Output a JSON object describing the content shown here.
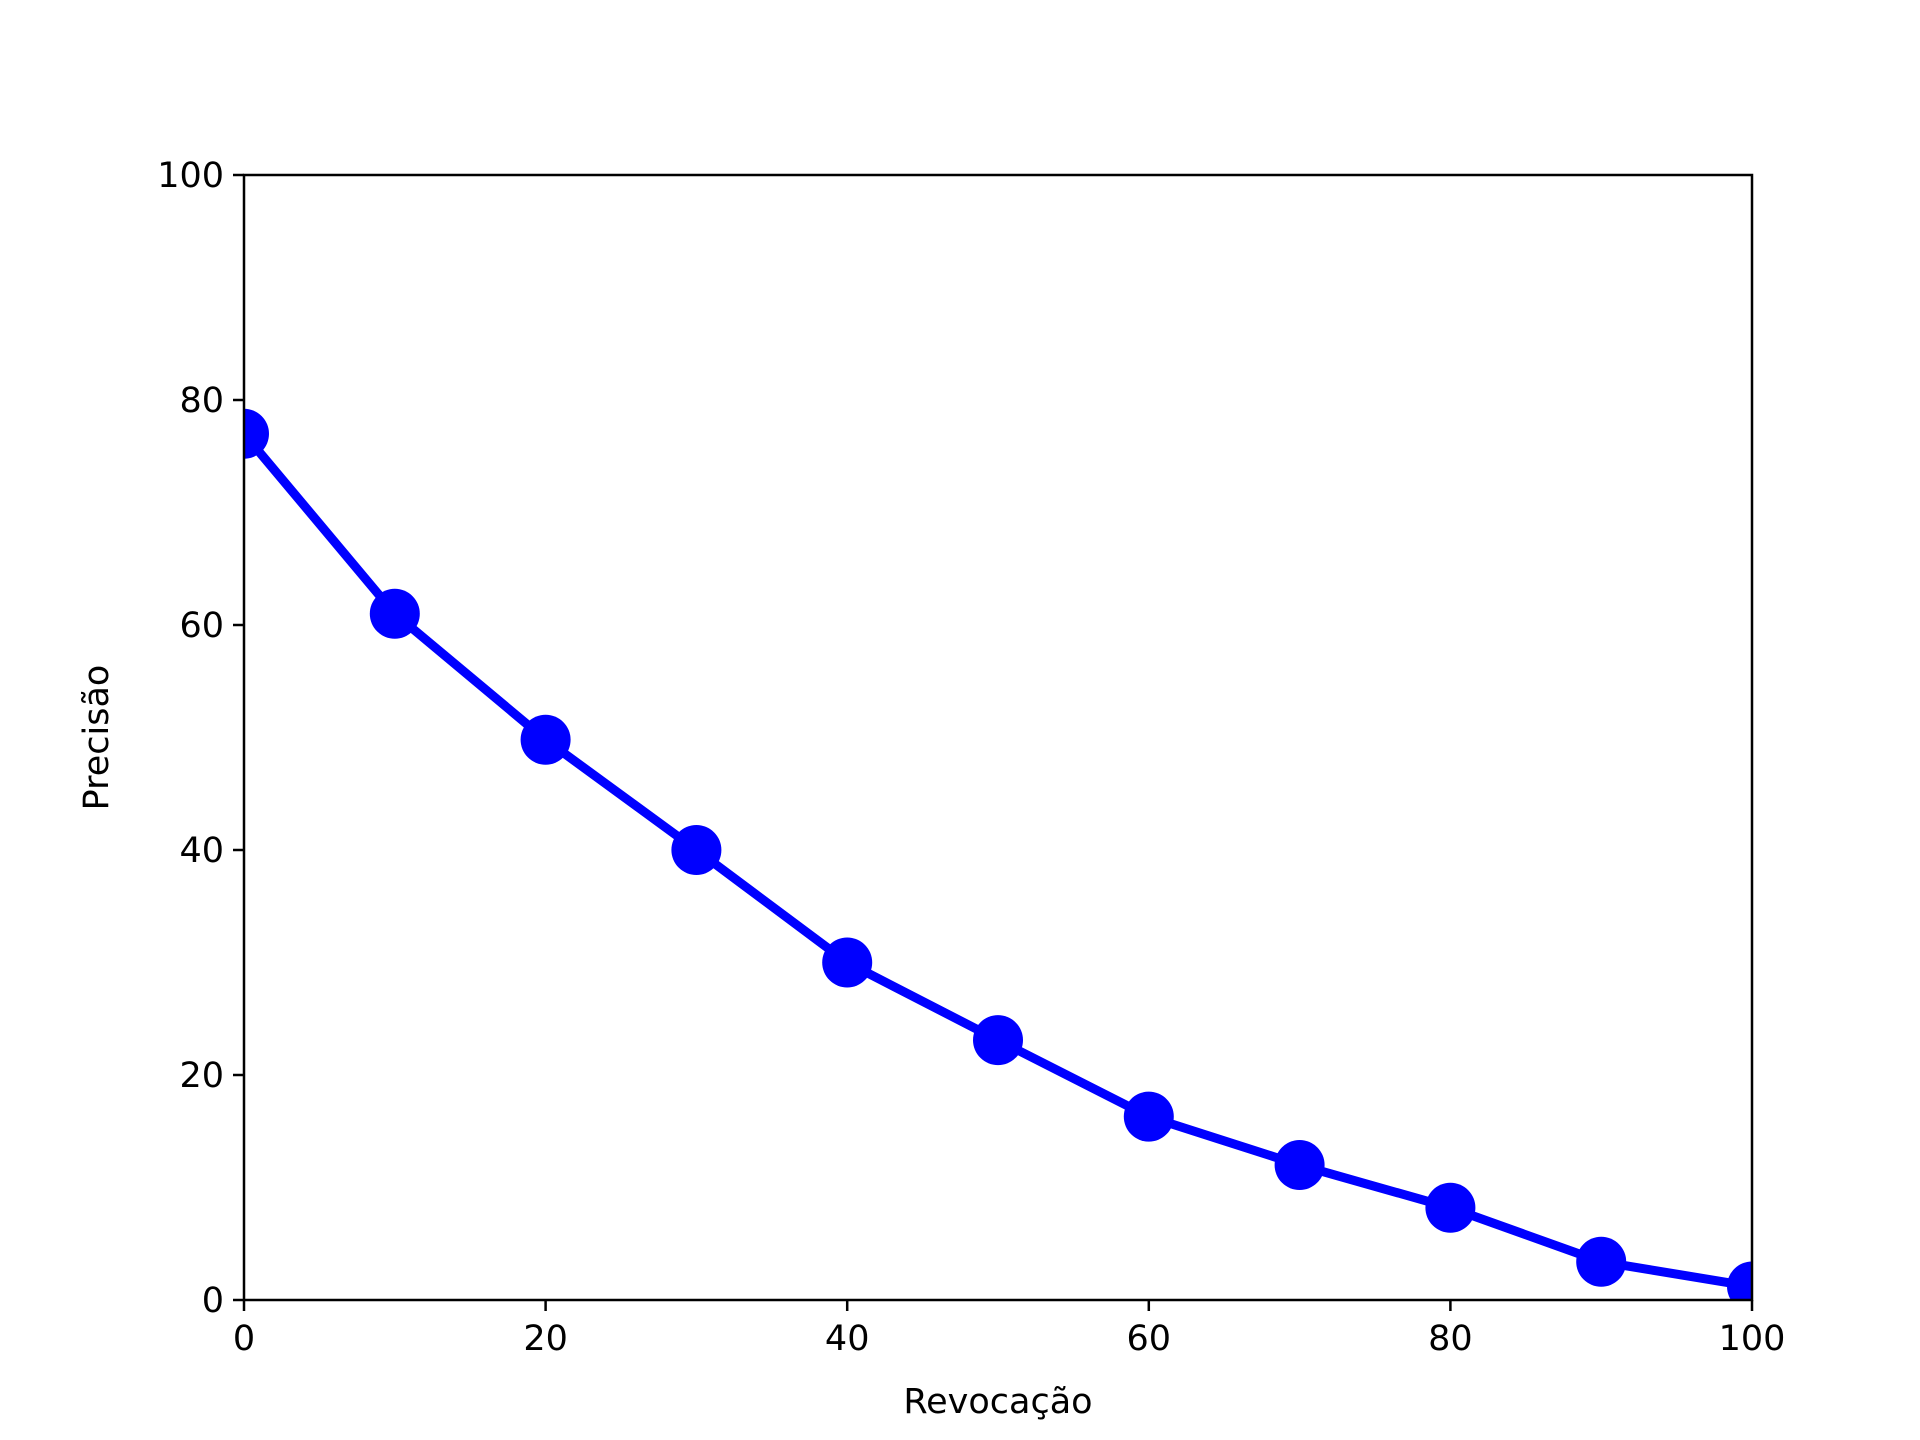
{
  "chart_data": {
    "type": "line",
    "title": "",
    "xlabel": "Revocação",
    "ylabel": "Precisão",
    "xlim": [
      0,
      100
    ],
    "ylim": [
      0,
      100
    ],
    "x_ticks": [
      0,
      20,
      40,
      60,
      80,
      100
    ],
    "y_ticks": [
      0,
      20,
      40,
      60,
      80,
      100
    ],
    "grid": false,
    "legend": "none",
    "series": [
      {
        "color": "#0000ff",
        "marker": "circle",
        "points": [
          {
            "x": 0,
            "y": 77.0
          },
          {
            "x": 10,
            "y": 61.0
          },
          {
            "x": 20,
            "y": 49.8
          },
          {
            "x": 30,
            "y": 40.0
          },
          {
            "x": 40,
            "y": 30.0
          },
          {
            "x": 50,
            "y": 23.1
          },
          {
            "x": 60,
            "y": 16.3
          },
          {
            "x": 70,
            "y": 12.0
          },
          {
            "x": 80,
            "y": 8.2
          },
          {
            "x": 90,
            "y": 3.4
          },
          {
            "x": 100,
            "y": 1.2
          }
        ]
      }
    ]
  }
}
